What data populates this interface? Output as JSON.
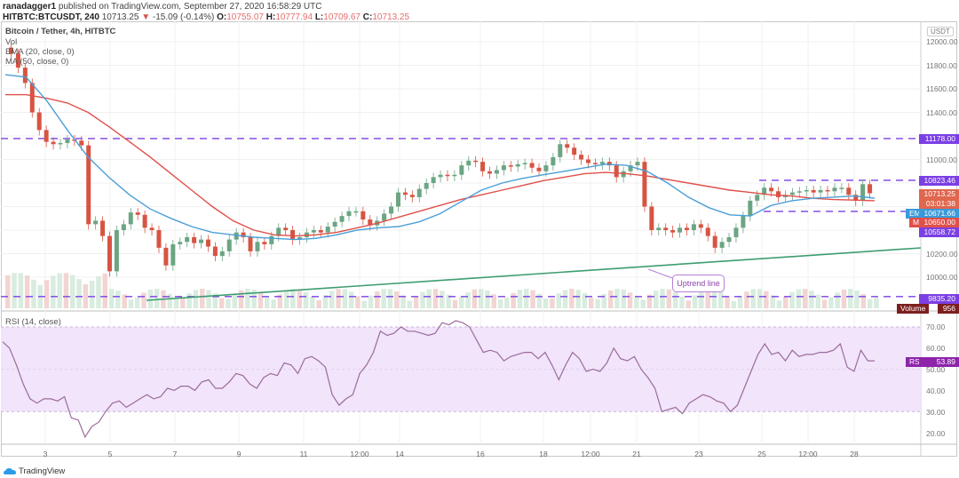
{
  "header": {
    "author": "ranadagger1",
    "published_text": "published on TradingView.com, September 27, 2020 16:58:29 UTC",
    "symbol": "HITBTC:BTCUSDT, 240",
    "last": "10713.25",
    "change": "-15.09 (-0.14%)",
    "open_label": "O:",
    "open": "10755.07",
    "high_label": "H:",
    "high": "10777.94",
    "low_label": "L:",
    "low": "10709.67",
    "close_label": "C:",
    "close": "10713.25"
  },
  "legend": {
    "title": "Bitcoin / Tether, 4h, HITBTC",
    "vol": "Vol",
    "ema": "EMA (20, close, 0)",
    "ma": "MA (50, close, 0)",
    "rsi": "RSI (14, close)"
  },
  "price_axis": {
    "unit": "USDT",
    "ticks": [
      "12000.00",
      "11800.00",
      "11600.00",
      "11400.00",
      "11000.00",
      "10200.00",
      "10000.00"
    ]
  },
  "price_tags": {
    "level_11178": "11178.00",
    "level_10823": "10823.46",
    "last_price": "10713.25",
    "countdown": "03:01:38",
    "ema_label": "EMA",
    "ema_value": "10671.66",
    "ma_label": "MA",
    "ma_value": "10650.00",
    "level_10558": "10558.72",
    "level_9835": "9835.20",
    "volume_label": "Volume",
    "volume_value": "956"
  },
  "rsi_axis": {
    "ticks": [
      "70.00",
      "60.00",
      "50.00",
      "40.00",
      "30.00",
      "20.00"
    ],
    "label": "RSI",
    "value": "53.89"
  },
  "time_axis": {
    "ticks": [
      "3",
      "5",
      "7",
      "9",
      "11",
      "12:00",
      "14",
      "16",
      "18",
      "12:00",
      "21",
      "23",
      "25",
      "12:00",
      "28"
    ]
  },
  "annotation": {
    "text": "Uptrend line"
  },
  "footer": {
    "brand": "TradingView"
  },
  "colors": {
    "up": "#6ba583",
    "down": "#d75442",
    "ema": "#4a9fd8",
    "ma": "#e0504a",
    "level": "#7b3fe4",
    "trend": "#3e9d70",
    "rsi": "#9b6b9b",
    "rsi_band": "#f1e4fb"
  },
  "chart_data": [
    {
      "type": "candlestick",
      "title": "Bitcoin / Tether, 4h, HITBTC",
      "xlabel": "",
      "ylabel": "USDT",
      "ylim": [
        9700,
        12150
      ],
      "x_ticks": [
        "3",
        "5",
        "7",
        "9",
        "11",
        "12:00",
        "14",
        "16",
        "18",
        "12:00",
        "21",
        "23",
        "25",
        "12:00",
        "28"
      ],
      "horizontal_levels": [
        11178.0,
        10823.46,
        10558.72,
        9835.2
      ],
      "series": [
        {
          "name": "EMA (20, close, 0)",
          "last": 10671.66
        },
        {
          "name": "MA (50, close, 0)",
          "last": 10650.0
        },
        {
          "name": "Close",
          "last": 10713.25
        }
      ],
      "trendline": {
        "name": "Uptrend line",
        "from": [
          "~5-6 Sep",
          9880
        ],
        "to": [
          "28 Sep",
          10240
        ]
      },
      "ohlc_last": {
        "open": 10755.07,
        "high": 10777.94,
        "low": 10709.67,
        "close": 10713.25,
        "change": -15.09,
        "change_pct": -0.14
      },
      "volume_last": 956
    },
    {
      "type": "line",
      "title": "RSI (14, close)",
      "ylim": [
        15,
        75
      ],
      "bands": [
        30,
        70
      ],
      "x_ticks": [
        "3",
        "5",
        "7",
        "9",
        "11",
        "12:00",
        "14",
        "16",
        "18",
        "12:00",
        "21",
        "23",
        "25",
        "12:00",
        "28"
      ],
      "values": [
        63,
        60,
        52,
        43,
        36,
        34,
        36,
        36,
        35,
        37,
        27,
        26,
        18,
        23,
        25,
        30,
        34,
        35,
        32,
        34,
        36,
        38,
        36,
        37,
        41,
        40,
        42,
        42,
        40,
        44,
        45,
        41,
        41,
        44,
        48,
        47,
        43,
        41,
        46,
        48,
        47,
        53,
        52,
        48,
        55,
        56,
        54,
        51,
        38,
        33,
        36,
        38,
        48,
        52,
        58,
        68,
        66,
        67,
        70,
        68,
        68,
        67,
        66,
        67,
        72,
        71,
        73,
        72,
        70,
        64,
        58,
        59,
        58,
        54,
        56,
        57,
        58,
        58,
        55,
        58,
        52,
        45,
        52,
        58,
        55,
        49,
        50,
        49,
        53,
        60,
        55,
        54,
        56,
        50,
        46,
        41,
        30,
        31,
        32,
        29,
        34,
        36,
        38,
        37,
        35,
        34,
        30,
        33,
        41,
        49,
        57,
        62,
        57,
        58,
        54,
        59,
        56,
        57,
        57,
        58,
        58,
        59,
        62,
        51,
        49,
        59,
        54,
        54
      ],
      "last": 53.89
    }
  ]
}
